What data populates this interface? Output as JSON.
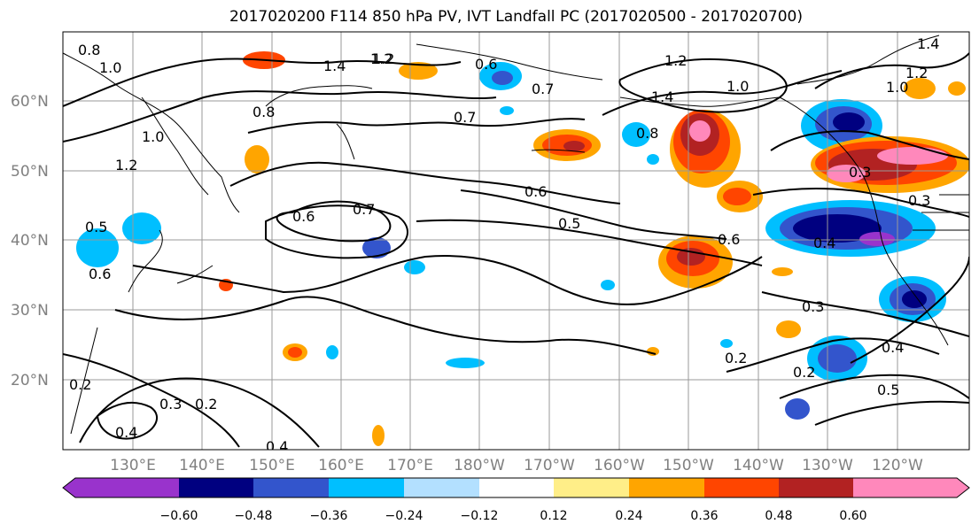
{
  "title": "2017020200 F114 850 hPa PV, IVT Landfall PC (2017020500 - 2017020700)",
  "lat_ticks": [
    "60°N",
    "50°N",
    "40°N",
    "30°N",
    "20°N"
  ],
  "lon_ticks": [
    "130°E",
    "140°E",
    "150°E",
    "160°E",
    "170°E",
    "180°W",
    "170°W",
    "160°W",
    "150°W",
    "140°W",
    "130°W",
    "120°W"
  ],
  "colorbar": {
    "labels": [
      "−0.60",
      "−0.48",
      "−0.36",
      "−0.24",
      "−0.12",
      "0.12",
      "0.24",
      "0.36",
      "0.48",
      "0.60"
    ],
    "colors": [
      "#9933cc",
      "#000080",
      "#3355cc",
      "#00bfff",
      "#b3e0ff",
      "#ffffff",
      "#ffee88",
      "#ffa500",
      "#ff4500",
      "#b22222",
      "#ff88bb"
    ]
  },
  "contour_labels": [
    "0.8",
    "1.0",
    "1.2",
    "1.4",
    "1.2",
    "0.8",
    "0.7",
    "0.6",
    "0.7",
    "0.8",
    "1.2",
    "1.4",
    "1.0",
    "1.4",
    "1.2",
    "1.0",
    "1.0",
    "1.2",
    "0.5",
    "0.6",
    "0.6",
    "0.7",
    "0.6",
    "0.5",
    "0.6",
    "0.4",
    "0.3",
    "0.3",
    "0.2",
    "0.2",
    "0.4",
    "0.5",
    "0.3",
    "0.2",
    "0.4",
    "0.2",
    "0.4",
    "0.3"
  ]
}
